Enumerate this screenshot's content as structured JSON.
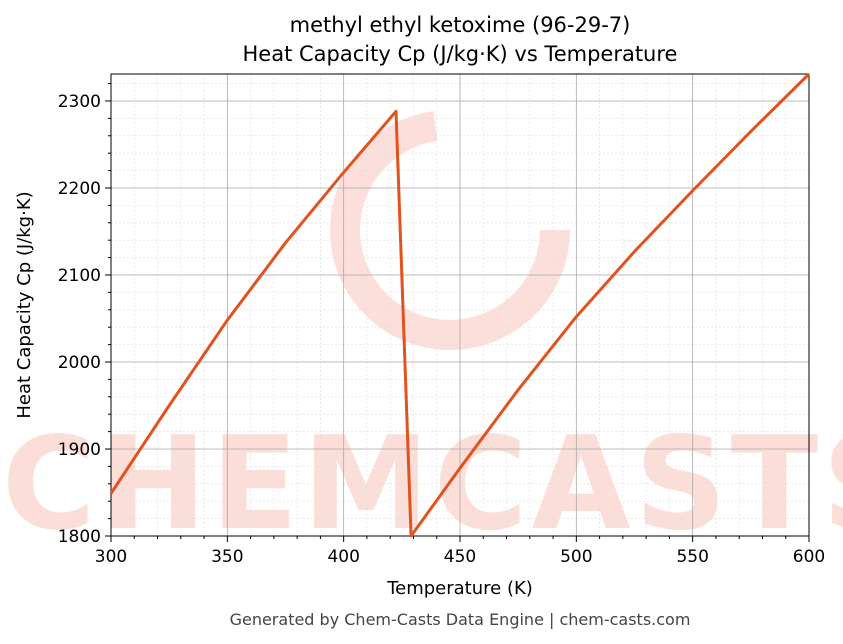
{
  "chart_data": {
    "type": "line",
    "title": "methyl ethyl ketoxime (96-29-7)",
    "subtitle": "Heat Capacity Cp (J/kg·K) vs Temperature",
    "xlabel": "Temperature (K)",
    "ylabel": "Heat Capacity Cp (J/kg·K)",
    "xlim": [
      300,
      600
    ],
    "ylim": [
      1800,
      2331
    ],
    "xticks": [
      300,
      350,
      400,
      450,
      500,
      550,
      600
    ],
    "yticks": [
      1800,
      1900,
      2000,
      2100,
      2200,
      2300
    ],
    "grid": true,
    "color": "#e0531f",
    "series": [
      {
        "x": [
          300,
          325,
          350,
          375,
          400,
          422.5,
          429,
          450,
          475,
          500,
          525,
          550,
          575,
          600
        ],
        "y": [
          1849,
          1950,
          2048,
          2137,
          2218,
          2288,
          1800,
          1878,
          1968,
          2052,
          2127,
          2197,
          2265,
          2331
        ]
      }
    ]
  },
  "watermark": "CHEMCASTS",
  "footer": "Generated by Chem-Casts Data Engine | chem-casts.com"
}
